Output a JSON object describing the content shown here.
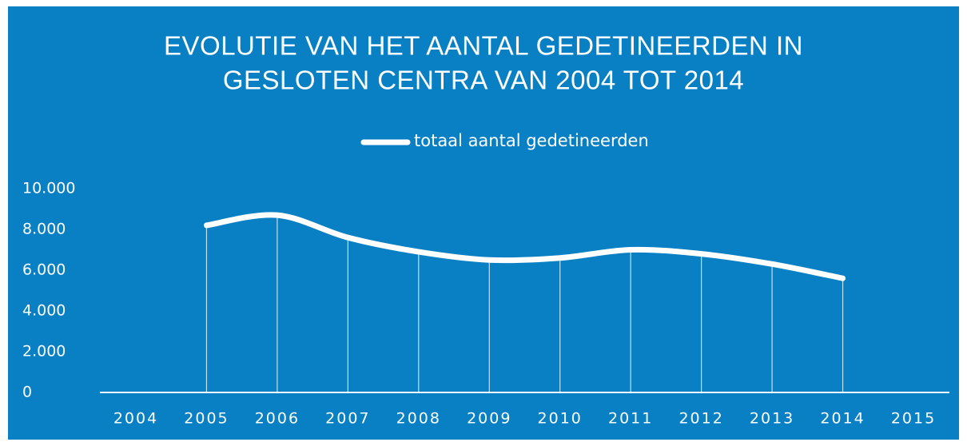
{
  "chart_data": {
    "type": "line",
    "title": [
      "EVOLUTIE VAN HET AANTAL GEDETINEERDEN IN",
      "GESLOTEN CENTRA VAN 2004 TOT 2014"
    ],
    "categories": [
      "2004",
      "2005",
      "2006",
      "2007",
      "2008",
      "2009",
      "2010",
      "2011",
      "2012",
      "2013",
      "2014",
      "2015"
    ],
    "series": [
      {
        "name": "totaal aantal gedetineerden",
        "color": "#ffffff",
        "values": [
          null,
          8200,
          8700,
          7600,
          6900,
          6500,
          6600,
          7000,
          6800,
          6300,
          5600,
          null
        ]
      }
    ],
    "ylim": [
      0,
      10000
    ],
    "yticks": [
      0,
      {
        "value": 2000,
        "label": "2.000"
      },
      {
        "value": 4000,
        "label": "4.000"
      },
      {
        "value": 6000,
        "label": "6.000"
      },
      {
        "value": 8000,
        "label": "8.000"
      },
      {
        "value": 10000,
        "label": "10.000"
      }
    ],
    "legend": "top",
    "background": "#0a80c4"
  }
}
